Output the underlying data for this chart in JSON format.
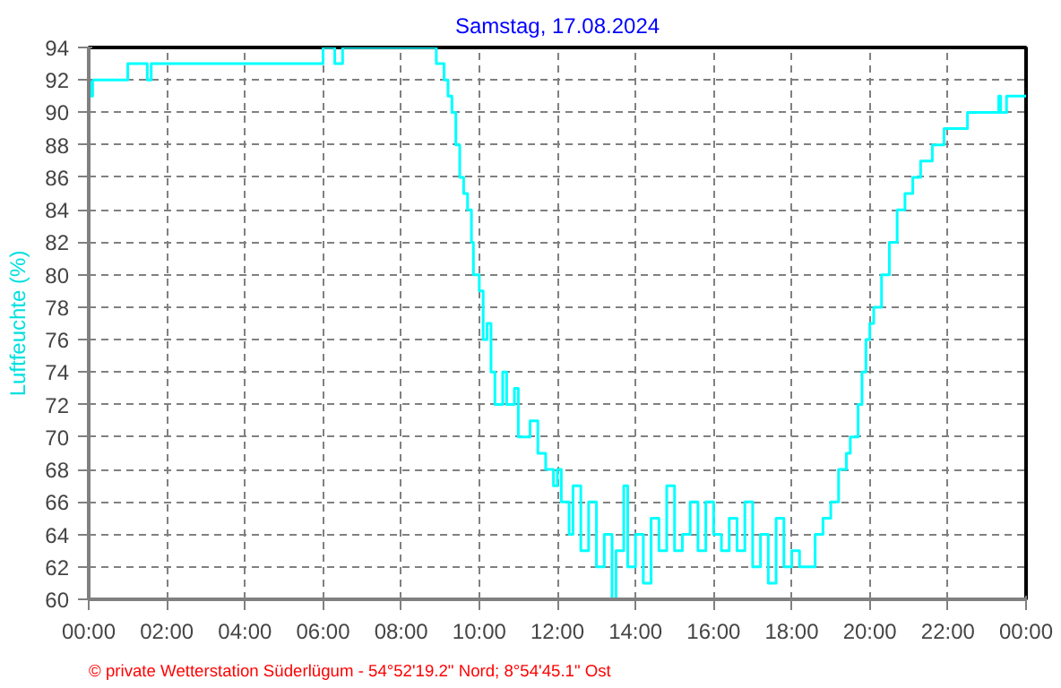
{
  "chart_data": {
    "type": "step",
    "title": "Samstag, 17.08.2024",
    "ylabel": "Luftfeuchte (%)",
    "annotations": [
      "© private Wetterstation Süderlügum - 54°52'19.2\" Nord; 8°54'45.1\" Ost"
    ],
    "x": [
      0.0,
      0.05,
      0.1,
      1.0,
      1.5,
      1.6,
      5.9,
      6.0,
      6.3,
      6.5,
      8.7,
      8.9,
      9.1,
      9.2,
      9.3,
      9.4,
      9.5,
      9.6,
      9.7,
      9.8,
      9.85,
      10.0,
      10.1,
      10.2,
      10.3,
      10.4,
      10.6,
      10.7,
      10.9,
      11.0,
      11.3,
      11.5,
      11.7,
      11.9,
      12.0,
      12.1,
      12.3,
      12.4,
      12.6,
      12.8,
      13.0,
      13.2,
      13.4,
      13.5,
      13.7,
      13.8,
      14.0,
      14.2,
      14.4,
      14.6,
      14.8,
      15.0,
      15.2,
      15.4,
      15.6,
      15.8,
      16.0,
      16.2,
      16.4,
      16.6,
      16.8,
      17.0,
      17.2,
      17.4,
      17.6,
      17.8,
      18.0,
      18.2,
      18.5,
      18.6,
      18.8,
      19.0,
      19.2,
      19.4,
      19.5,
      19.7,
      19.8,
      19.9,
      20.0,
      20.1,
      20.3,
      20.5,
      20.7,
      20.9,
      21.1,
      21.3,
      21.6,
      21.9,
      22.5,
      23.3,
      23.35,
      23.5,
      24.0
    ],
    "series": [
      {
        "color": "#00ffff",
        "values": [
          92,
          91,
          92,
          93,
          92,
          93,
          93,
          94,
          93,
          94,
          94,
          93,
          92,
          91,
          90,
          88,
          86,
          85,
          84,
          82,
          80,
          79,
          76,
          77,
          74,
          72,
          74,
          72,
          73,
          70,
          71,
          69,
          68,
          67,
          68,
          66,
          64,
          67,
          63,
          66,
          62,
          64,
          60,
          63,
          67,
          62,
          64,
          61,
          65,
          63,
          67,
          63,
          64,
          66,
          63,
          66,
          64,
          63,
          65,
          63,
          66,
          62,
          64,
          61,
          65,
          62,
          63,
          62,
          62,
          64,
          65,
          66,
          68,
          69,
          70,
          72,
          74,
          76,
          77,
          78,
          80,
          82,
          84,
          85,
          86,
          87,
          88,
          89,
          90,
          91,
          90,
          91,
          91
        ]
      }
    ],
    "xlim": [
      0,
      24
    ],
    "ylim": [
      60,
      94
    ],
    "xticks": [
      {
        "value": 0,
        "label": "00:00"
      },
      {
        "value": 2,
        "label": "02:00"
      },
      {
        "value": 4,
        "label": "04:00"
      },
      {
        "value": 6,
        "label": "06:00"
      },
      {
        "value": 8,
        "label": "08:00"
      },
      {
        "value": 10,
        "label": "10:00"
      },
      {
        "value": 12,
        "label": "12:00"
      },
      {
        "value": 14,
        "label": "14:00"
      },
      {
        "value": 16,
        "label": "16:00"
      },
      {
        "value": 18,
        "label": "18:00"
      },
      {
        "value": 20,
        "label": "20:00"
      },
      {
        "value": 22,
        "label": "22:00"
      },
      {
        "value": 24,
        "label": "00:00"
      }
    ],
    "yticks": [
      60,
      62,
      64,
      66,
      68,
      70,
      72,
      74,
      76,
      78,
      80,
      82,
      84,
      86,
      88,
      90,
      92,
      94
    ],
    "grid": true
  }
}
